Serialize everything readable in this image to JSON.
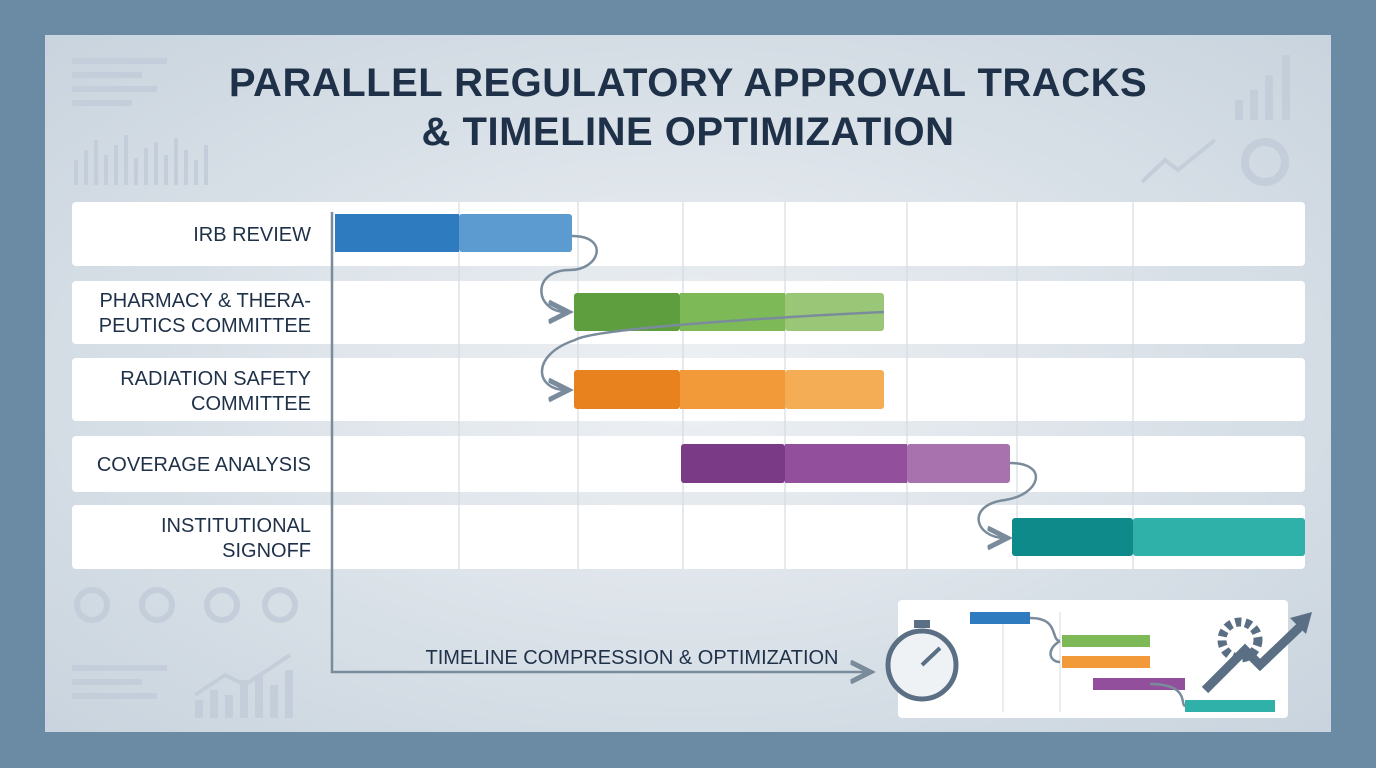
{
  "title": {
    "lines": [
      "PARALLEL REGULATORY APPROVAL TRACKS",
      "& TIMELINE OPTIMIZATION"
    ]
  },
  "tracks": [
    {
      "lines": [
        "IRB REVIEW"
      ]
    },
    {
      "lines": [
        "PHARMACY & THERA-",
        "PEUTICS COMMITTEE"
      ]
    },
    {
      "lines": [
        "RADIATION SAFETY",
        "COMMITTEE"
      ]
    },
    {
      "lines": [
        "COVERAGE ANALYSIS"
      ]
    },
    {
      "lines": [
        "INSTITUTIONAL",
        "SIGNOFF"
      ]
    }
  ],
  "footer": {
    "label": "TIMELINE COMPRESSION & OPTIMIZATION"
  }
}
